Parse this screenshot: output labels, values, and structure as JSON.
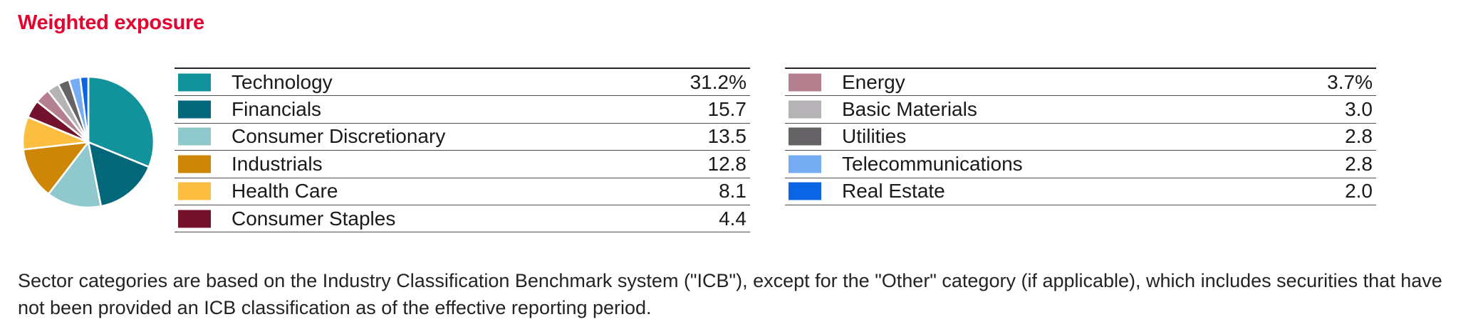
{
  "page": {
    "title": "Weighted exposure",
    "title_color": "#E4032E",
    "footnote": "Sector categories are based on the Industry Classification Benchmark system (\"ICB\"), except for the \"Other\" category (if applicable), which includes securities that have not been provided an ICB classification as of the effective reporting period."
  },
  "chart_data": {
    "type": "pie",
    "title": "Weighted exposure",
    "unit": "%",
    "start_angle_deg": 0,
    "direction": "clockwise",
    "legend_position": "two-column tables right of pie",
    "categories": [
      "Technology",
      "Financials",
      "Consumer Discretionary",
      "Industrials",
      "Health Care",
      "Consumer Staples",
      "Energy",
      "Basic Materials",
      "Utilities",
      "Telecommunications",
      "Real Estate"
    ],
    "values": [
      31.2,
      15.7,
      13.5,
      12.8,
      8.1,
      4.4,
      3.7,
      3.0,
      2.8,
      2.8,
      2.0
    ],
    "display_values": [
      "31.2%",
      "15.7",
      "13.5",
      "12.8",
      "8.1",
      "4.4",
      "3.7%",
      "3.0",
      "2.8",
      "2.8",
      "2.0"
    ],
    "colors": [
      "#12929B",
      "#03677A",
      "#8FC8CD",
      "#CE8606",
      "#FBBE41",
      "#74122E",
      "#B4808F",
      "#B5B3B6",
      "#666366",
      "#76ACF1",
      "#0B64E4"
    ]
  },
  "left_table": {
    "rows": [
      {
        "label": "Technology",
        "value": "31.2%",
        "color": "#12929B"
      },
      {
        "label": "Financials",
        "value": "15.7",
        "color": "#03677A"
      },
      {
        "label": "Consumer Discretionary",
        "value": "13.5",
        "color": "#8FC8CD"
      },
      {
        "label": "Industrials",
        "value": "12.8",
        "color": "#CE8606"
      },
      {
        "label": "Health Care",
        "value": "8.1",
        "color": "#FBBE41"
      },
      {
        "label": "Consumer Staples",
        "value": "4.4",
        "color": "#74122E"
      }
    ]
  },
  "right_table": {
    "rows": [
      {
        "label": "Energy",
        "value": "3.7%",
        "color": "#B4808F"
      },
      {
        "label": "Basic Materials",
        "value": "3.0",
        "color": "#B5B3B6"
      },
      {
        "label": "Utilities",
        "value": "2.8",
        "color": "#666366"
      },
      {
        "label": "Telecommunications",
        "value": "2.8",
        "color": "#76ACF1"
      },
      {
        "label": "Real Estate",
        "value": "2.0",
        "color": "#0B64E4"
      }
    ]
  }
}
